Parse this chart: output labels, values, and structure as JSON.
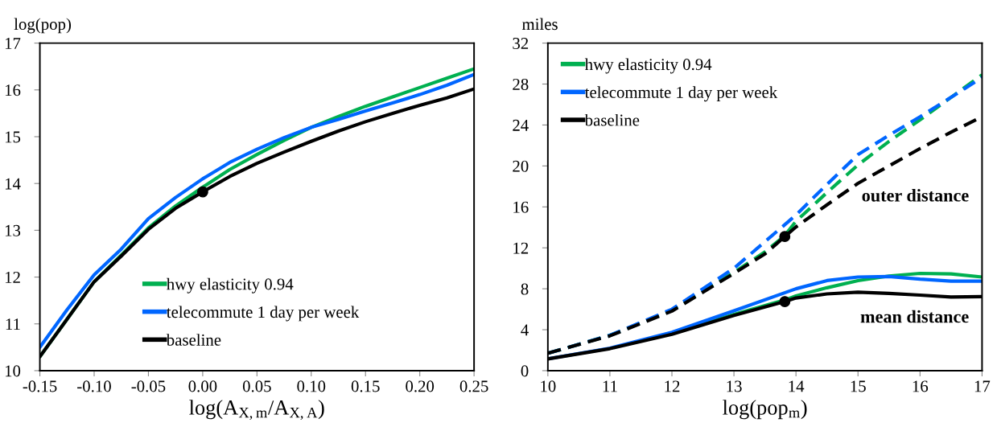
{
  "chart_data": [
    {
      "type": "line",
      "xlabel": "log(A$_{X,m}$/A$_{X,A}$)",
      "ylabel": "log(pop)",
      "xlim": [
        -0.15,
        0.25
      ],
      "xticks": [
        {
          "value": -0.15,
          "label": "-0.15"
        },
        {
          "value": -0.1,
          "label": "-0.10"
        },
        {
          "value": -0.05,
          "label": "-0.05"
        },
        {
          "value": 0,
          "label": "0.00"
        },
        {
          "value": 0.05,
          "label": "0.05"
        },
        {
          "value": 0.1,
          "label": "0.10"
        },
        {
          "value": 0.15,
          "label": "0.15"
        },
        {
          "value": 0.2,
          "label": "0.20"
        },
        {
          "value": 0.25,
          "label": "0.25"
        }
      ],
      "ylim": [
        10,
        17
      ],
      "yticks": [
        10,
        11,
        12,
        13,
        14,
        15,
        16,
        17
      ],
      "grid": false,
      "legend": "bottom right",
      "series": [
        {
          "name": "hwy elasticity 0.94",
          "color": "#00b050",
          "line_style": "solid",
          "marker": "none",
          "x": [
            -0.15,
            -0.125,
            -0.1,
            -0.075,
            -0.05,
            -0.025,
            0,
            0.025,
            0.05,
            0.075,
            0.1,
            0.125,
            0.15,
            0.175,
            0.2,
            0.225,
            0.25
          ],
          "values": [
            10.3,
            11.1,
            11.9,
            12.47,
            13.05,
            13.52,
            13.92,
            14.3,
            14.62,
            14.92,
            15.2,
            15.43,
            15.65,
            15.85,
            16.05,
            16.25,
            16.45
          ]
        },
        {
          "name": "telecommute 1 day per week",
          "color": "#0066ff",
          "line_style": "solid",
          "marker": "none",
          "x": [
            -0.15,
            -0.125,
            -0.1,
            -0.075,
            -0.05,
            -0.025,
            0,
            0.025,
            0.05,
            0.075,
            0.1,
            0.125,
            0.15,
            0.175,
            0.2,
            0.225,
            0.25
          ],
          "values": [
            10.5,
            11.3,
            12.05,
            12.6,
            13.25,
            13.7,
            14.1,
            14.45,
            14.73,
            14.98,
            15.2,
            15.37,
            15.55,
            15.72,
            15.9,
            16.1,
            16.33
          ]
        },
        {
          "name": "baseline",
          "color": "#000000",
          "line_style": "solid",
          "marker": "none",
          "x": [
            -0.15,
            -0.125,
            -0.1,
            -0.075,
            -0.05,
            -0.025,
            0,
            0.025,
            0.05,
            0.075,
            0.1,
            0.125,
            0.15,
            0.175,
            0.2,
            0.225,
            0.25
          ],
          "values": [
            10.3,
            11.1,
            11.9,
            12.45,
            13.02,
            13.47,
            13.82,
            14.15,
            14.43,
            14.67,
            14.9,
            15.12,
            15.32,
            15.5,
            15.67,
            15.83,
            16.02
          ]
        },
        {
          "type": "scatter",
          "color": "#000000",
          "marker": "circle",
          "x": [
            0
          ],
          "values": [
            13.82
          ]
        }
      ]
    },
    {
      "type": "line",
      "xlabel": "log(pop$_{m}$)",
      "ylabel": "miles",
      "xlim": [
        10,
        17
      ],
      "xticks": [
        10,
        11,
        12,
        13,
        14,
        15,
        16,
        17
      ],
      "ylim": [
        0,
        32
      ],
      "yticks": [
        0,
        4,
        8,
        12,
        16,
        20,
        24,
        28,
        32
      ],
      "grid": false,
      "legend": "top left",
      "annotations": [
        "outer distance",
        "mean distance"
      ],
      "series": [
        {
          "color": "#00b050",
          "line_style": "dashed",
          "marker": "none",
          "x": [
            10,
            11,
            12,
            13,
            13.5,
            13.82,
            14,
            14.5,
            15,
            15.5,
            16,
            16.5,
            17
          ],
          "values": [
            1.7,
            3.45,
            5.9,
            9.6,
            11.6,
            13.2,
            14.6,
            17.4,
            20.1,
            22.4,
            24.5,
            26.7,
            28.9
          ]
        },
        {
          "color": "#0066ff",
          "line_style": "dashed",
          "marker": "none",
          "x": [
            10,
            11,
            12,
            13,
            13.5,
            14,
            14.5,
            15,
            15.5,
            16,
            16.5,
            17
          ],
          "values": [
            1.7,
            3.45,
            6.0,
            10.0,
            12.6,
            15.2,
            18.2,
            21.1,
            23.0,
            24.8,
            26.7,
            28.65
          ]
        },
        {
          "color": "#000000",
          "line_style": "dashed",
          "marker": "none",
          "x": [
            10,
            11,
            12,
            13,
            13.5,
            13.82,
            14,
            14.5,
            15,
            15.5,
            16,
            16.5,
            17
          ],
          "values": [
            1.7,
            3.4,
            5.82,
            9.5,
            11.4,
            13.1,
            14.04,
            16.2,
            18.3,
            20.0,
            21.7,
            23.3,
            24.8
          ]
        },
        {
          "name": "hwy elasticity 0.94",
          "color": "#00b050",
          "line_style": "solid",
          "marker": "none",
          "x": [
            12,
            13,
            13.82,
            14,
            14.5,
            15,
            15.5,
            16,
            16.5,
            17
          ],
          "values": [
            3.6,
            5.5,
            6.9,
            7.3,
            8.1,
            8.8,
            9.25,
            9.5,
            9.45,
            9.15
          ]
        },
        {
          "name": "telecommute 1 day per week",
          "color": "#0066ff",
          "line_style": "solid",
          "marker": "none",
          "x": [
            10,
            11,
            12,
            13,
            14,
            14.5,
            15,
            15.5,
            16,
            16.5,
            17
          ],
          "values": [
            1.15,
            2.2,
            3.75,
            5.85,
            8.0,
            8.8,
            9.15,
            9.2,
            8.94,
            8.75,
            8.74
          ]
        },
        {
          "name": "baseline",
          "color": "#000000",
          "line_style": "solid",
          "marker": "none",
          "x": [
            10,
            11,
            12,
            13,
            13.82,
            14,
            14.5,
            15,
            15.5,
            16,
            16.5,
            17
          ],
          "values": [
            1.15,
            2.15,
            3.55,
            5.4,
            6.75,
            7.1,
            7.5,
            7.66,
            7.55,
            7.38,
            7.2,
            7.23
          ]
        },
        {
          "type": "scatter",
          "color": "#000000",
          "marker": "circle",
          "x": [
            13.82,
            13.82
          ],
          "values": [
            13.1,
            6.75
          ]
        }
      ]
    }
  ]
}
